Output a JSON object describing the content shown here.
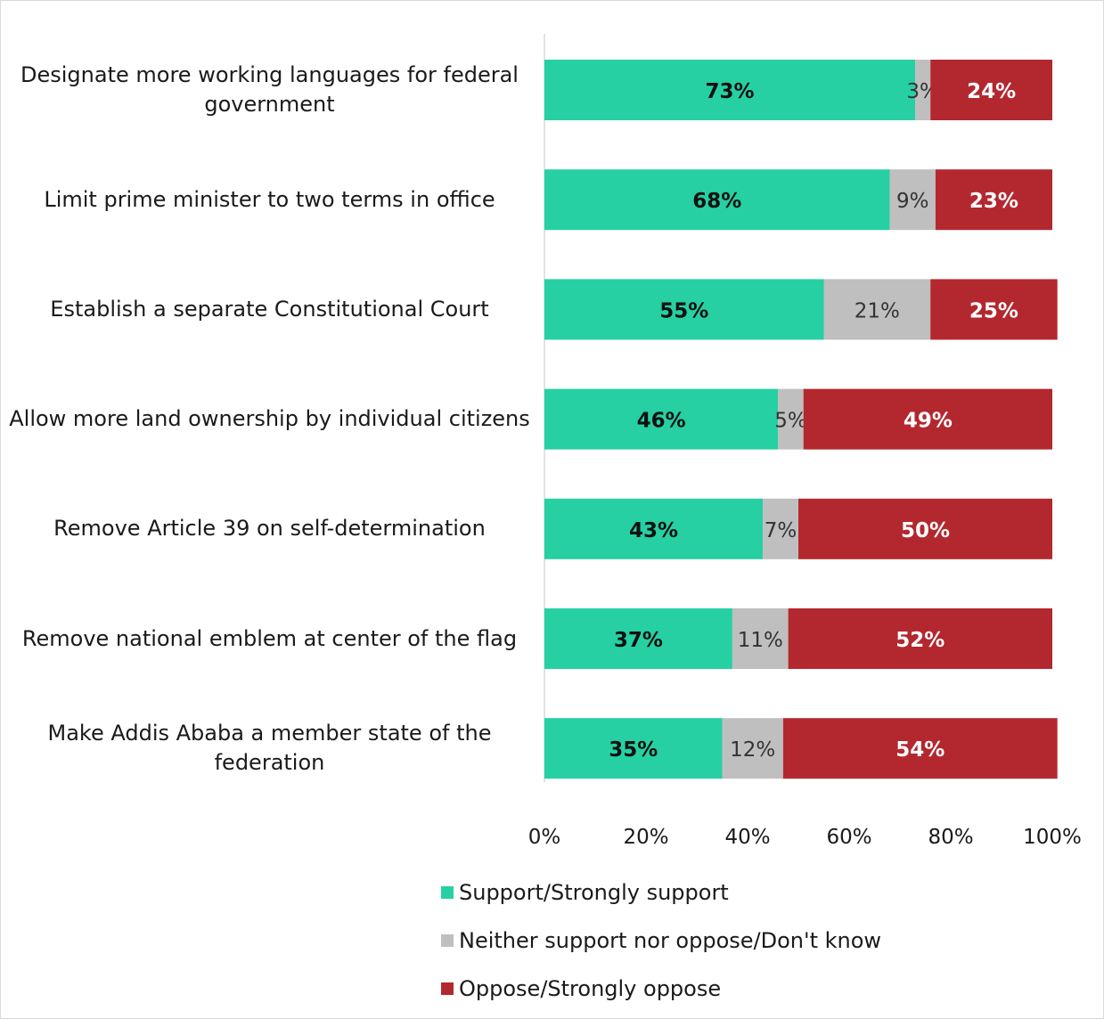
{
  "chart_data": {
    "type": "bar",
    "orientation": "horizontal",
    "stacked": true,
    "categories": [
      "Designate more working languages for federal government",
      "Limit prime minister to two terms in office",
      "Establish a separate Constitutional Court",
      "Allow more land ownership by individual citizens",
      "Remove Article 39 on self-determination",
      "Remove national emblem at center of the flag",
      "Make Addis Ababa a member state of the federation"
    ],
    "series": [
      {
        "name": "Support/Strongly support",
        "color": "#26d0a2",
        "values": [
          73,
          68,
          55,
          46,
          43,
          37,
          35
        ]
      },
      {
        "name": "Neither support nor oppose/Don't know",
        "color": "#bfbfbf",
        "values": [
          3,
          9,
          21,
          5,
          7,
          11,
          12
        ]
      },
      {
        "name": "Oppose/Strongly oppose",
        "color": "#b3282f",
        "values": [
          24,
          23,
          25,
          49,
          50,
          52,
          54
        ]
      }
    ],
    "data_labels": [
      [
        "73%",
        "3%",
        "24%"
      ],
      [
        "68%",
        "9%",
        "23%"
      ],
      [
        "55%",
        "21%",
        "25%"
      ],
      [
        "46%",
        "5%",
        "49%"
      ],
      [
        "43%",
        "7%",
        "50%"
      ],
      [
        "37%",
        "11%",
        "52%"
      ],
      [
        "35%",
        "12%",
        "54%"
      ]
    ],
    "x_ticks": [
      "0%",
      "20%",
      "40%",
      "60%",
      "80%",
      "100%"
    ],
    "xlim": [
      0,
      100
    ],
    "grid": false,
    "legend_position": "bottom"
  }
}
